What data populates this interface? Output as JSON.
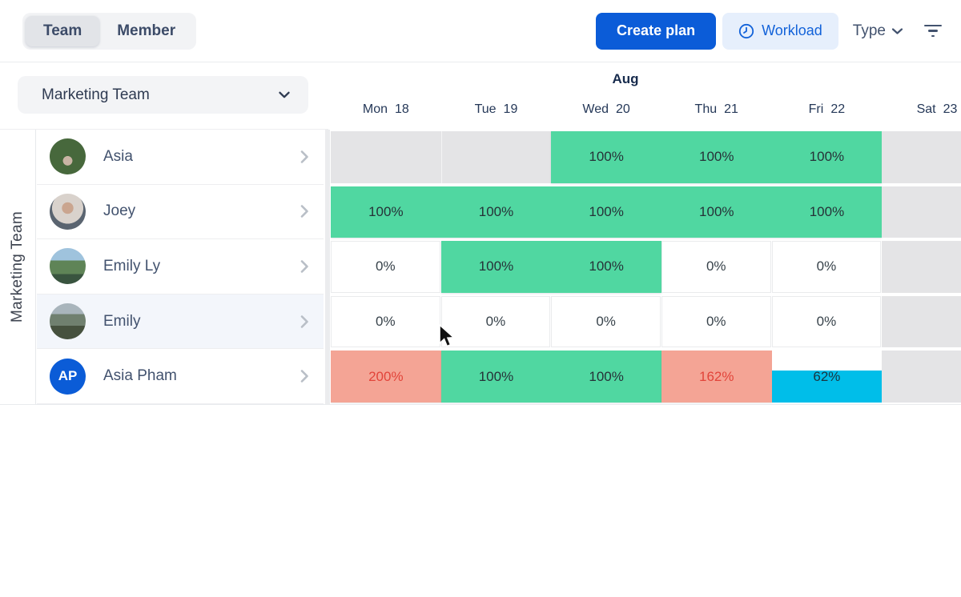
{
  "topbar": {
    "segments": [
      {
        "label": "Team",
        "active": true
      },
      {
        "label": "Member",
        "active": false
      }
    ],
    "create_plan_label": "Create plan",
    "workload_label": "Workload",
    "type_label": "Type"
  },
  "team_selector": {
    "label": "Marketing Team"
  },
  "vertical_group_label": "Marketing Team",
  "calendar": {
    "month": "Aug",
    "days": [
      {
        "name": "Mon",
        "date": "18"
      },
      {
        "name": "Tue",
        "date": "19"
      },
      {
        "name": "Wed",
        "date": "20"
      },
      {
        "name": "Thu",
        "date": "21"
      },
      {
        "name": "Fri",
        "date": "22"
      },
      {
        "name": "Sat",
        "date": "23"
      }
    ]
  },
  "members": [
    {
      "name": "Asia",
      "avatar": "photo",
      "avatar_class": "av-asia",
      "highlighted": false
    },
    {
      "name": "Joey",
      "avatar": "photo",
      "avatar_class": "av-joey",
      "highlighted": false
    },
    {
      "name": "Emily Ly",
      "avatar": "photo",
      "avatar_class": "av-emilyly",
      "highlighted": false
    },
    {
      "name": "Emily",
      "avatar": "photo",
      "avatar_class": "av-emily",
      "highlighted": true
    },
    {
      "name": "Asia Pham",
      "avatar": "initials",
      "initials": "AP",
      "highlighted": false
    }
  ],
  "grid": {
    "weekend_cols": [
      5
    ],
    "rows": [
      {
        "member": "Asia",
        "segments": [
          {
            "start": 0,
            "span": 2,
            "kind": "empty"
          },
          {
            "start": 2,
            "span": 3,
            "kind": "normal",
            "values": [
              "100%",
              "100%",
              "100%"
            ]
          }
        ]
      },
      {
        "member": "Joey",
        "segments": [
          {
            "start": 0,
            "span": 5,
            "kind": "normal",
            "values": [
              "100%",
              "100%",
              "100%",
              "100%",
              "100%"
            ]
          }
        ]
      },
      {
        "member": "Emily Ly",
        "segments": [
          {
            "start": 0,
            "span": 1,
            "kind": "zero",
            "values": [
              "0%"
            ]
          },
          {
            "start": 1,
            "span": 2,
            "kind": "normal",
            "values": [
              "100%",
              "100%"
            ]
          },
          {
            "start": 3,
            "span": 1,
            "kind": "zero",
            "values": [
              "0%"
            ]
          },
          {
            "start": 4,
            "span": 1,
            "kind": "zero",
            "values": [
              "0%"
            ]
          }
        ]
      },
      {
        "member": "Emily",
        "segments": [
          {
            "start": 0,
            "span": 1,
            "kind": "zero",
            "values": [
              "0%"
            ]
          },
          {
            "start": 1,
            "span": 1,
            "kind": "zero",
            "values": [
              "0%"
            ]
          },
          {
            "start": 2,
            "span": 1,
            "kind": "zero",
            "values": [
              "0%"
            ]
          },
          {
            "start": 3,
            "span": 1,
            "kind": "zero",
            "values": [
              "0%"
            ]
          },
          {
            "start": 4,
            "span": 1,
            "kind": "zero",
            "values": [
              "0%"
            ]
          }
        ]
      },
      {
        "member": "Asia Pham",
        "segments": [
          {
            "start": 0,
            "span": 1,
            "kind": "over",
            "values": [
              "200%"
            ]
          },
          {
            "start": 1,
            "span": 2,
            "kind": "normal",
            "values": [
              "100%",
              "100%"
            ]
          },
          {
            "start": 3,
            "span": 1,
            "kind": "over",
            "values": [
              "162%"
            ]
          },
          {
            "start": 4,
            "span": 1,
            "kind": "partial",
            "values": [
              "62%"
            ],
            "fill": 0.62
          }
        ]
      }
    ]
  },
  "colors": {
    "accent_blue": "#0B5CD8",
    "workload_pill_bg": "#E6EFFC",
    "workload_pill_text": "#1262D9",
    "load_green": "#50D7A1",
    "over_salmon": "#F4A495",
    "over_text_red": "#E2443A",
    "partial_cyan": "#00BEE9",
    "empty_gray": "#E4E4E6"
  }
}
